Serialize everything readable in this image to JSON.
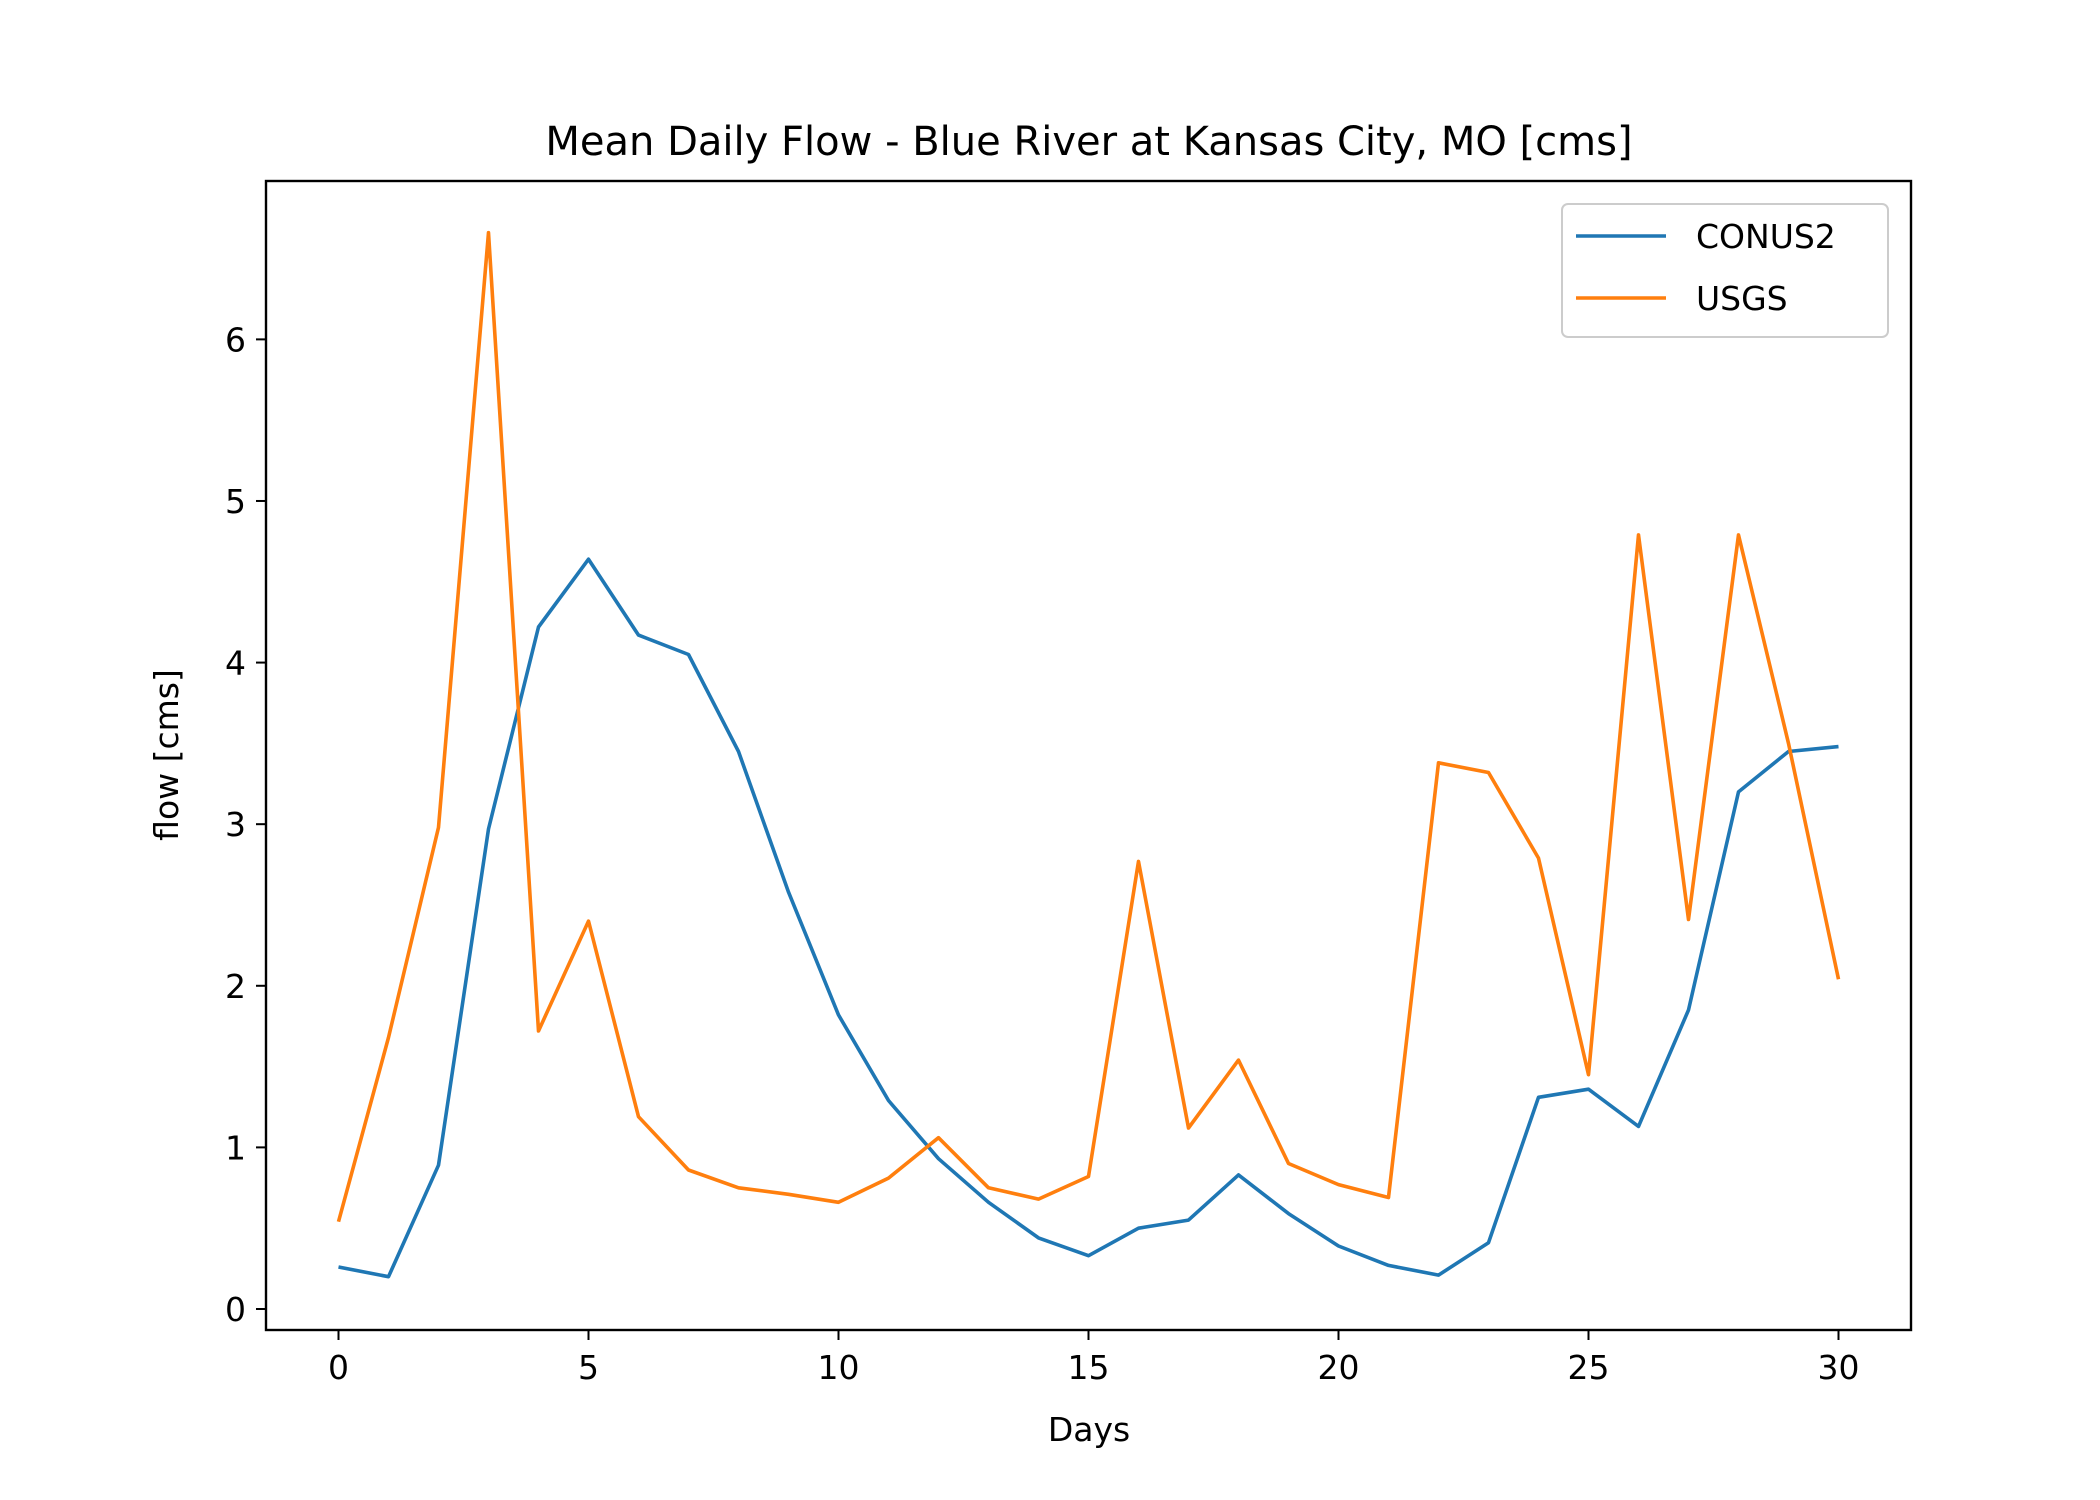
{
  "chart_data": {
    "type": "line",
    "title": "Mean Daily Flow - Blue River at Kansas City, MO [cms]",
    "xlabel": "Days",
    "ylabel": "flow [cms]",
    "xlim": [
      -1.45,
      31.45
    ],
    "ylim": [
      -0.13,
      6.98
    ],
    "xticks": [
      0,
      5,
      10,
      15,
      20,
      25,
      30
    ],
    "yticks": [
      0,
      1,
      2,
      3,
      4,
      5,
      6
    ],
    "grid": false,
    "legend_position": "top-right",
    "x": [
      0,
      1,
      2,
      3,
      4,
      5,
      6,
      7,
      8,
      9,
      10,
      11,
      12,
      13,
      14,
      15,
      16,
      17,
      18,
      19,
      20,
      21,
      22,
      23,
      24,
      25,
      26,
      27,
      28,
      29,
      30
    ],
    "series": [
      {
        "name": "CONUS2",
        "color": "#1f77b4",
        "values": [
          0.26,
          0.2,
          0.89,
          2.97,
          4.22,
          4.64,
          4.17,
          4.05,
          3.45,
          2.58,
          1.82,
          1.29,
          0.93,
          0.66,
          0.44,
          0.33,
          0.5,
          0.55,
          0.83,
          0.59,
          0.39,
          0.27,
          0.21,
          0.41,
          1.31,
          1.36,
          1.13,
          1.85,
          3.2,
          3.45,
          3.48
        ]
      },
      {
        "name": "USGS",
        "color": "#ff7f0e",
        "values": [
          0.54,
          1.68,
          2.98,
          6.66,
          1.72,
          2.4,
          1.19,
          0.86,
          0.75,
          0.71,
          0.66,
          0.81,
          1.06,
          0.75,
          0.68,
          0.82,
          2.77,
          1.12,
          1.54,
          0.9,
          0.77,
          0.69,
          3.38,
          3.32,
          2.79,
          1.45,
          4.79,
          2.41,
          4.79,
          3.5,
          2.04
        ]
      }
    ]
  }
}
